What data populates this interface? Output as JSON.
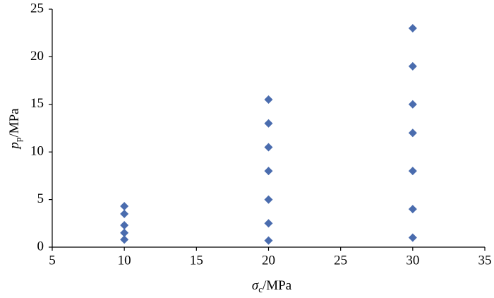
{
  "chart_data": {
    "type": "scatter",
    "xlabel": [
      "σ",
      "c",
      "/MPa"
    ],
    "ylabel": [
      "p",
      "p",
      "/MPa"
    ],
    "series": [
      {
        "color": "#4a6cae",
        "x": [
          10,
          10,
          10,
          10,
          10,
          20,
          20,
          20,
          20,
          20,
          20,
          20,
          30,
          30,
          30,
          30,
          30,
          30,
          30
        ],
        "values": [
          0.8,
          1.5,
          2.3,
          3.5,
          4.3,
          0.7,
          2.5,
          5,
          8,
          10.5,
          13,
          15.5,
          1,
          4,
          8,
          12,
          15,
          19,
          23
        ]
      }
    ],
    "xlim": [
      5,
      35
    ],
    "xticks": [
      5,
      10,
      15,
      20,
      25,
      30,
      35
    ],
    "ylim": [
      0,
      25
    ],
    "yticks": [
      0,
      5,
      10,
      15,
      20,
      25
    ],
    "grid": false
  }
}
